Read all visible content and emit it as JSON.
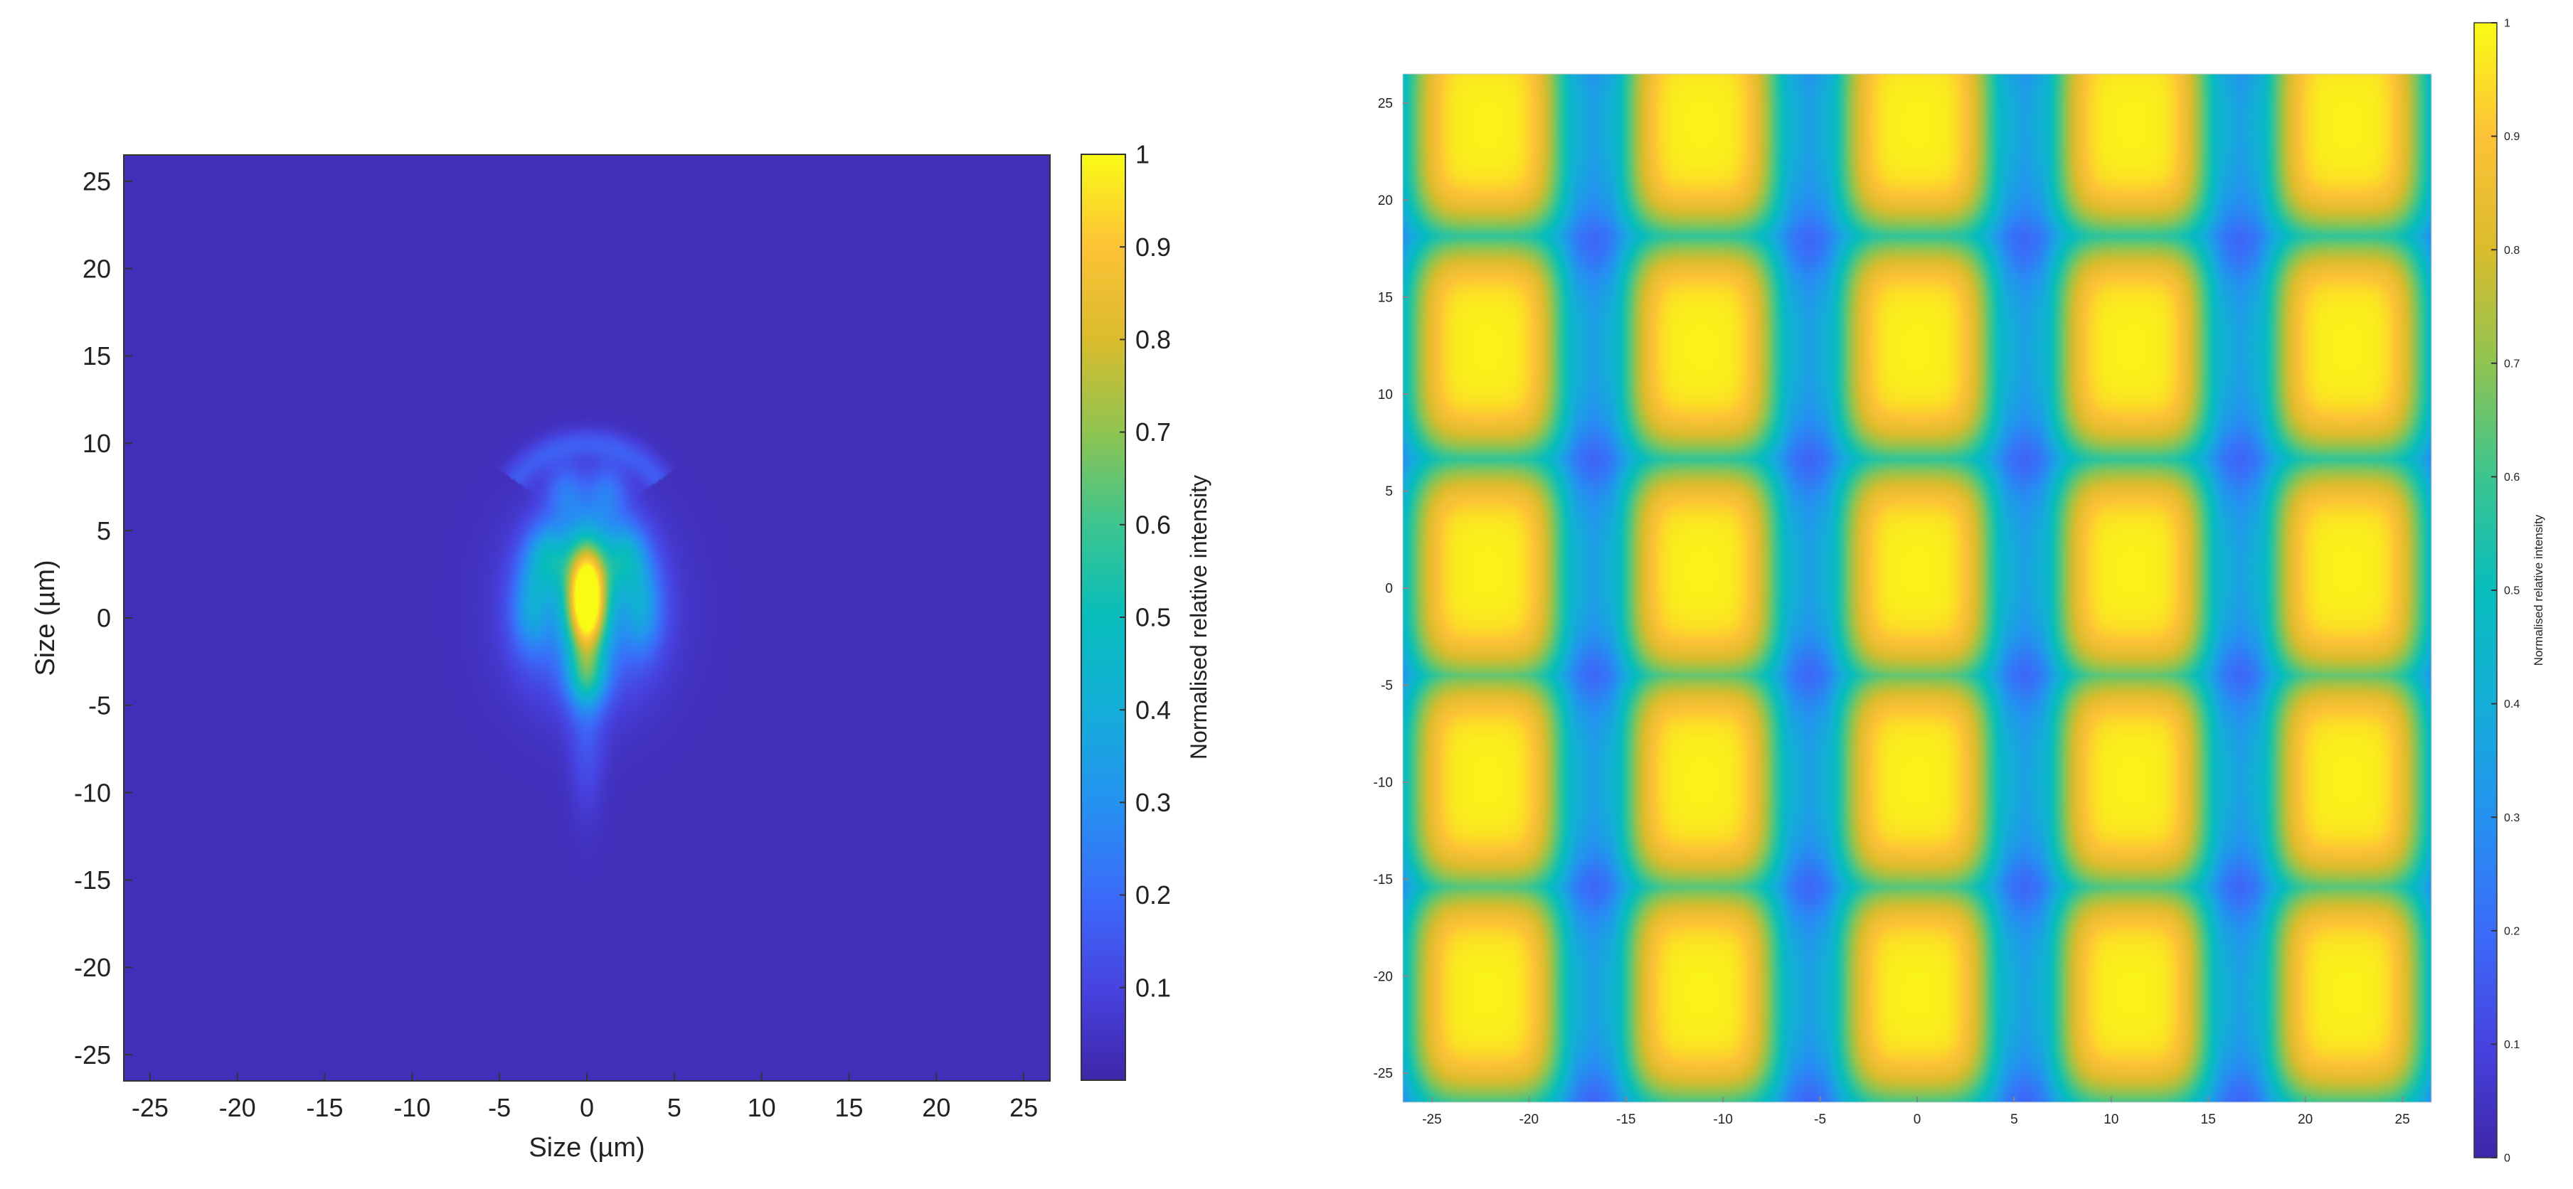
{
  "chart_data": [
    {
      "type": "heatmap",
      "title": "",
      "xlabel": "Size (µm)",
      "ylabel": "Size (µm)",
      "xlim": [
        -26.5,
        26.5
      ],
      "ylim": [
        -26.5,
        26.5
      ],
      "xticks": [
        -25,
        -20,
        -15,
        -10,
        -5,
        0,
        5,
        10,
        15,
        20,
        25
      ],
      "yticks": [
        25,
        20,
        15,
        10,
        5,
        0,
        -5,
        -10,
        -15,
        -20,
        -25
      ],
      "background_value": 0.03,
      "features": [
        {
          "kind": "spot",
          "x": 0,
          "y": 1.2,
          "sx": 0.8,
          "sy": 2.3,
          "value": 1.0
        },
        {
          "kind": "spot",
          "x": 0,
          "y": 0.5,
          "sx": 2.8,
          "sy": 3.6,
          "value": 0.25
        },
        {
          "kind": "spot",
          "x": -2.2,
          "y": 3.5,
          "sx": 0.9,
          "sy": 1.4,
          "value": 0.3
        },
        {
          "kind": "spot",
          "x": 2.2,
          "y": 3.5,
          "sx": 0.9,
          "sy": 1.4,
          "value": 0.3
        },
        {
          "kind": "spot",
          "x": -3.2,
          "y": 0.5,
          "sx": 0.8,
          "sy": 1.8,
          "value": 0.22
        },
        {
          "kind": "spot",
          "x": 3.2,
          "y": 0.5,
          "sx": 0.8,
          "sy": 1.8,
          "value": 0.22
        },
        {
          "kind": "spot",
          "x": -1.2,
          "y": 7.2,
          "sx": 0.8,
          "sy": 1.2,
          "value": 0.17
        },
        {
          "kind": "spot",
          "x": 1.2,
          "y": 7.2,
          "sx": 0.8,
          "sy": 1.2,
          "value": 0.17
        },
        {
          "kind": "spot",
          "x": 0,
          "y": -3.5,
          "sx": 0.8,
          "sy": 1.2,
          "value": 0.28
        },
        {
          "kind": "spot",
          "x": 0,
          "y": -7,
          "sx": 0.7,
          "sy": 3.0,
          "value": 0.1
        },
        {
          "kind": "arc",
          "x": 0,
          "y": 5,
          "r": 5,
          "width": 0.6,
          "from_deg": 35,
          "to_deg": 145,
          "value": 0.12
        }
      ],
      "colorbar": {
        "label": "Normalised relative intensity",
        "range": [
          0,
          1
        ],
        "ticks": [
          "0.1",
          "0.2",
          "0.3",
          "0.4",
          "0.5",
          "0.6",
          "0.7",
          "0.8",
          "0.9",
          "1"
        ]
      }
    },
    {
      "type": "heatmap",
      "title": "",
      "xlabel": "",
      "ylabel": "",
      "xlim": [
        -26.5,
        26.5
      ],
      "ylim": [
        -26.5,
        26.5
      ],
      "xticks": [
        -25,
        -20,
        -15,
        -10,
        -5,
        0,
        5,
        10,
        15,
        20,
        25
      ],
      "yticks": [
        25,
        20,
        15,
        10,
        5,
        0,
        -5,
        -10,
        -15,
        -20,
        -25
      ],
      "background_value": 0.2,
      "spot_grid": {
        "x": [
          -22.2,
          -11.1,
          0,
          11.1,
          22.2
        ],
        "y": [
          23.9,
          12.4,
          0.9,
          -9.9,
          -20.9
        ],
        "spot_half_width": 2.9,
        "spot_half_height": 4.3,
        "peak_value": 1.0
      },
      "colorbar": {
        "label": "Normalised relative intensity",
        "range": [
          0,
          1
        ],
        "ticks": [
          "0",
          "0.1",
          "0.2",
          "0.3",
          "0.4",
          "0.5",
          "0.6",
          "0.7",
          "0.8",
          "0.9",
          "1"
        ]
      }
    }
  ]
}
